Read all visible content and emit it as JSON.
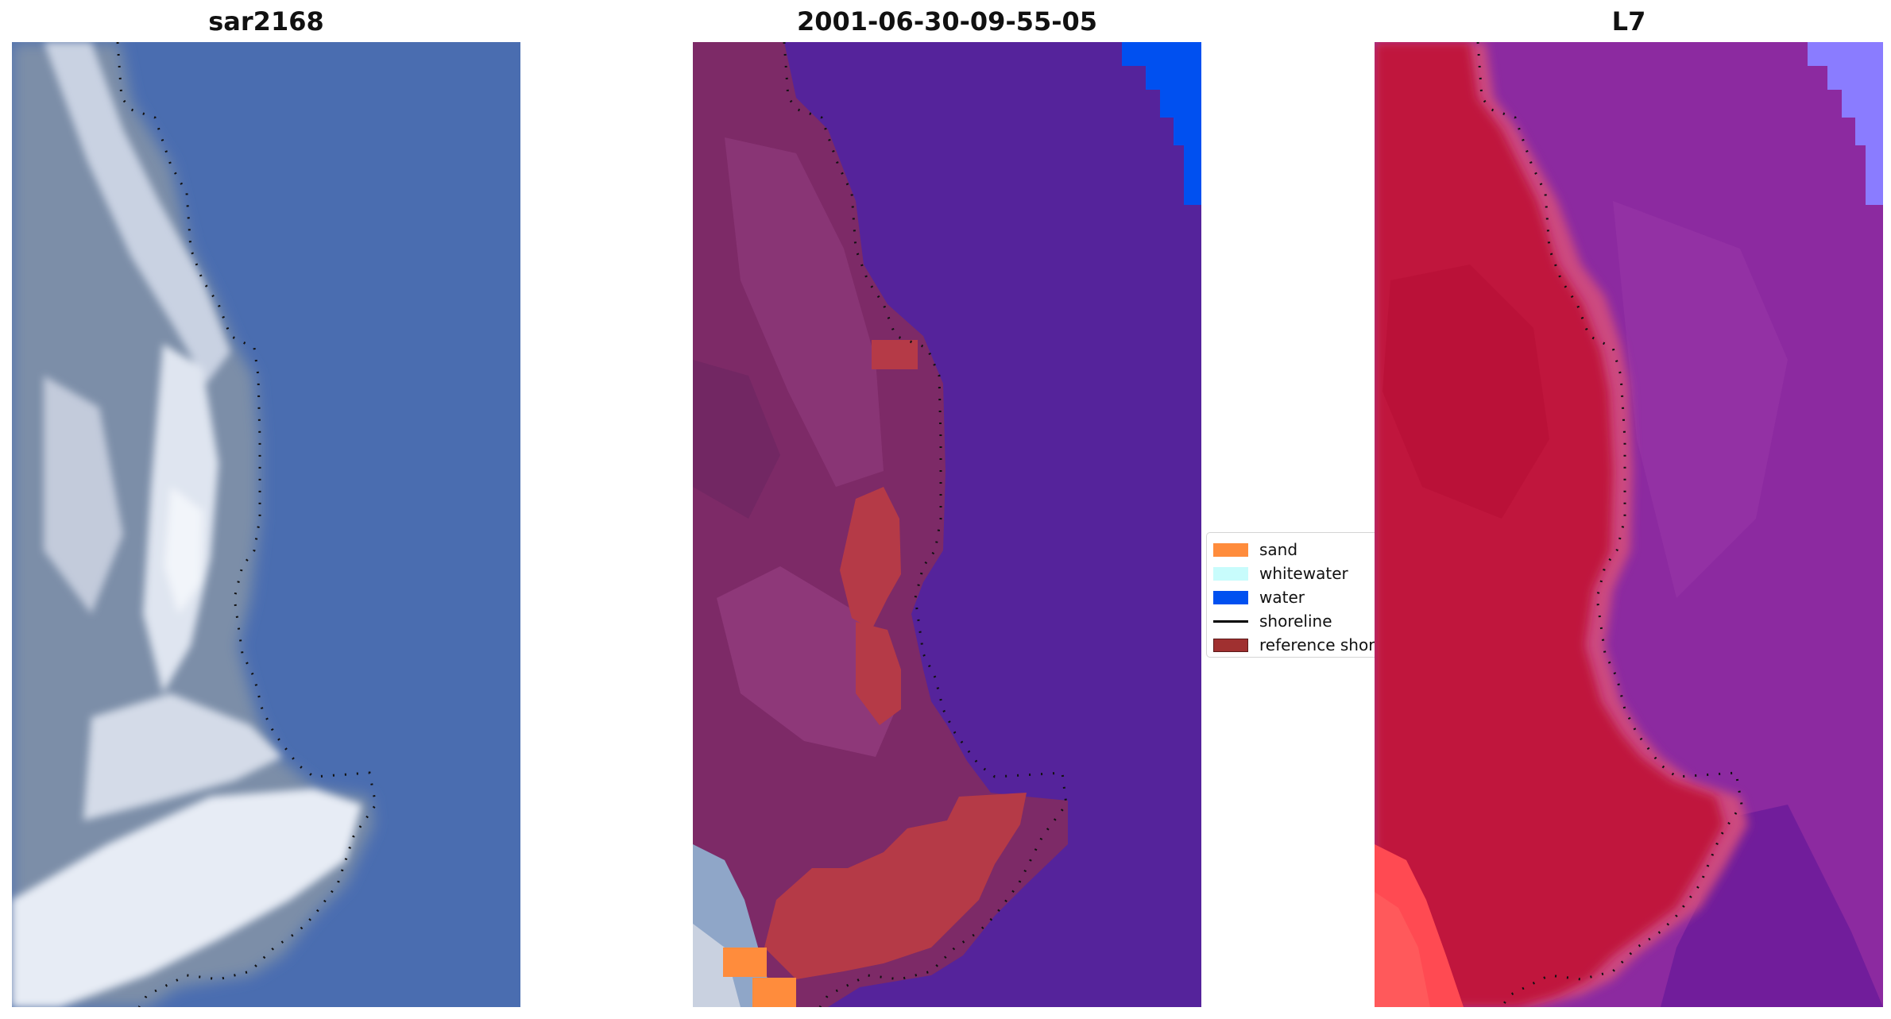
{
  "panels": [
    {
      "title": "sar2168"
    },
    {
      "title": "2001-06-30-09-55-05"
    },
    {
      "title": "L7"
    }
  ],
  "legend": {
    "items": [
      {
        "label": "sand",
        "color": "#ff8c3c"
      },
      {
        "label": "whitewater",
        "color": "#c8fcfc"
      },
      {
        "label": "water",
        "color": "#0050f0"
      },
      {
        "label": "shoreline",
        "color": "#000000"
      },
      {
        "label": "reference shoreline",
        "color": "#a03030"
      }
    ]
  },
  "colors": {
    "water_rgb": "#4a6db0",
    "land_rgb": "#7c8ea8",
    "wave_rgb": "#e6ebf4",
    "class_water": "#55239b",
    "class_land": "#7d2a67",
    "class_sand_overlay": "#b53a47",
    "index_land": "#c0143c",
    "index_water": "#8c2aa0",
    "index_fringe": "#cc4a80"
  }
}
